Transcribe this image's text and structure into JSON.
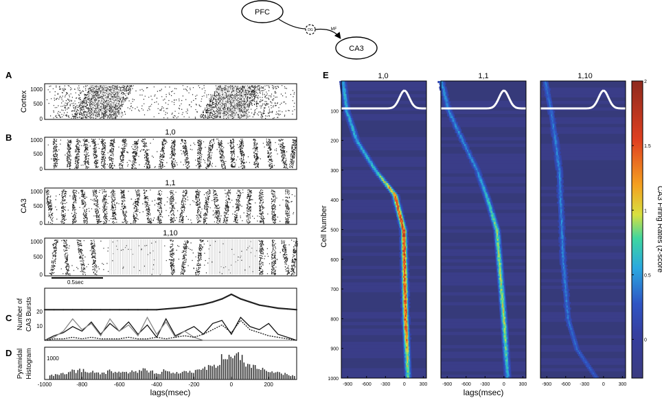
{
  "schematic": {
    "pfc": "PFC",
    "dg": "DG",
    "mf": "MF",
    "ca3": "CA3"
  },
  "panel_letters": {
    "a": "A",
    "b": "B",
    "c": "C",
    "d": "D",
    "e": "E"
  },
  "raster_titles": {
    "r1": "1,0",
    "r2": "1,1",
    "r3": "1,10"
  },
  "left_labels": {
    "cortex": "Cortex",
    "ca3": "CA3",
    "scalebar": "0.5sec",
    "number_bursts_1": "Number of",
    "number_bursts_2": "CA3 Bursts",
    "pyr_1": "Pyramidal",
    "pyr_2": "Histogram",
    "xlabel": "lags(msec)"
  },
  "raster_ticks": [
    "1000",
    "500",
    "0"
  ],
  "burst_ticks": [
    "20",
    "10"
  ],
  "hist_tick": "1000",
  "lag_ticks": [
    "-1000",
    "-800",
    "-600",
    "-400",
    "-200",
    "0",
    "200"
  ],
  "heatmap_titles": {
    "h1": "1,0",
    "h2": "1,1",
    "h3": "1,10"
  },
  "heatmap_yticks": [
    "100",
    "200",
    "300",
    "400",
    "500",
    "600",
    "700",
    "800",
    "900",
    "1000"
  ],
  "heatmap_xticks": [
    "-900",
    "-600",
    "-300",
    "0",
    "300"
  ],
  "heatmap_ylabel": "Cell Number",
  "heatmap_xlabel": "lags(msec)",
  "colorbar": {
    "label": "CA3 Firing Rates (z-score",
    "ticks": [
      "2",
      "1.5",
      "1",
      "0.5",
      "0"
    ],
    "colors": [
      "#3b3b80",
      "#2f55c4",
      "#2aa8e0",
      "#3fd6a0",
      "#d8e040",
      "#f4a020",
      "#e04020",
      "#8e2a1e"
    ]
  },
  "chart_data": [
    {
      "type": "line",
      "title": "",
      "xlabel": "lags(msec)",
      "ylabel": "Number of CA3 Bursts",
      "xlim": [
        -1000,
        350
      ],
      "ylim": [
        0,
        34
      ],
      "x": [
        -1000,
        -950,
        -900,
        -850,
        -800,
        -750,
        -700,
        -650,
        -600,
        -550,
        -500,
        -450,
        -400,
        -350,
        -300,
        -250,
        -200,
        -150,
        -100,
        -50,
        0,
        50,
        100,
        150,
        200,
        250,
        300,
        350
      ],
      "series": [
        {
          "values": [
            20,
            20,
            20,
            20,
            20,
            20,
            20,
            20,
            20,
            20,
            20,
            20,
            20,
            20.5,
            21,
            21.5,
            22.5,
            23.5,
            25,
            27,
            30,
            27,
            25,
            23,
            22,
            21,
            20.5,
            20
          ]
        },
        {
          "values": [
            0,
            3,
            5,
            9,
            6,
            12,
            4,
            11,
            6,
            12,
            4,
            10,
            2,
            14,
            3,
            6,
            9,
            4,
            11,
            13,
            4,
            15,
            9,
            7,
            11,
            4,
            2,
            0
          ]
        },
        {
          "values": [
            0,
            2,
            6,
            14,
            7,
            11,
            3,
            14,
            6,
            10,
            3,
            15,
            4,
            12,
            2,
            6,
            2,
            0,
            0,
            0,
            0,
            0,
            0,
            0,
            0,
            0,
            0,
            0
          ]
        },
        {
          "values": [
            0,
            1,
            1,
            2,
            1,
            2,
            1,
            1,
            1,
            2,
            1,
            1,
            2,
            1,
            2,
            3,
            2,
            4,
            7,
            10,
            5,
            13,
            7,
            5,
            3,
            2,
            1,
            0
          ]
        }
      ]
    },
    {
      "type": "bar",
      "title": "",
      "xlabel": "lags(msec)",
      "ylabel": "Pyramidal Histogram",
      "xlim": [
        -1000,
        350
      ],
      "ylim": [
        0,
        1300
      ],
      "x": [
        -960,
        -920,
        -880,
        -840,
        -800,
        -760,
        -720,
        -680,
        -640,
        -600,
        -560,
        -520,
        -480,
        -440,
        -400,
        -360,
        -320,
        -280,
        -240,
        -200,
        -160,
        -120,
        -80,
        -40,
        0,
        40,
        80,
        120,
        160,
        200,
        240,
        280,
        320
      ],
      "values": [
        180,
        220,
        260,
        330,
        380,
        310,
        260,
        290,
        350,
        320,
        260,
        300,
        380,
        330,
        270,
        330,
        280,
        300,
        350,
        330,
        420,
        480,
        620,
        820,
        1050,
        900,
        650,
        520,
        450,
        380,
        300,
        220,
        150
      ]
    },
    {
      "type": "heatmap",
      "title": "1,0",
      "xlabel": "lags(msec)",
      "ylabel": "Cell Number",
      "xlim": [
        -1000,
        350
      ],
      "ylim": [
        1000,
        0
      ],
      "zlim": [
        -0.3,
        2
      ],
      "ridge_x": [
        -970,
        -910,
        -750,
        -450,
        -150,
        -10,
        20,
        60
      ],
      "ridge_y": [
        0,
        100,
        200,
        300,
        380,
        500,
        800,
        1000
      ],
      "ridge_peak_z": [
        0.6,
        0.6,
        0.6,
        0.7,
        1.4,
        1.6,
        1.5,
        0.8
      ]
    },
    {
      "type": "heatmap",
      "title": "1,1",
      "xlabel": "lags(msec)",
      "ylabel": "Cell Number",
      "xlim": [
        -1000,
        350
      ],
      "ylim": [
        1000,
        0
      ],
      "zlim": [
        -0.3,
        2
      ],
      "ridge_x": [
        -990,
        -870,
        -650,
        -420,
        -250,
        -110,
        0,
        60
      ],
      "ridge_y": [
        0,
        100,
        200,
        300,
        400,
        500,
        800,
        1000
      ],
      "ridge_peak_z": [
        0.5,
        0.5,
        0.5,
        0.5,
        0.7,
        0.9,
        1.0,
        0.6
      ]
    },
    {
      "type": "heatmap",
      "title": "1,10",
      "xlabel": "lags(msec)",
      "ylabel": "Cell Number",
      "xlim": [
        -1000,
        350
      ],
      "ylim": [
        1000,
        0
      ],
      "zlim": [
        -0.3,
        2
      ],
      "ridge_x": [
        -920,
        -830,
        -760,
        -700,
        -680,
        -640,
        -560,
        -420,
        -100
      ],
      "ridge_y": [
        0,
        100,
        200,
        300,
        400,
        600,
        800,
        900,
        1000
      ],
      "ridge_peak_z": [
        0.4,
        0.4,
        0.45,
        0.45,
        0.45,
        0.45,
        0.4,
        0.35,
        0.3
      ]
    }
  ]
}
